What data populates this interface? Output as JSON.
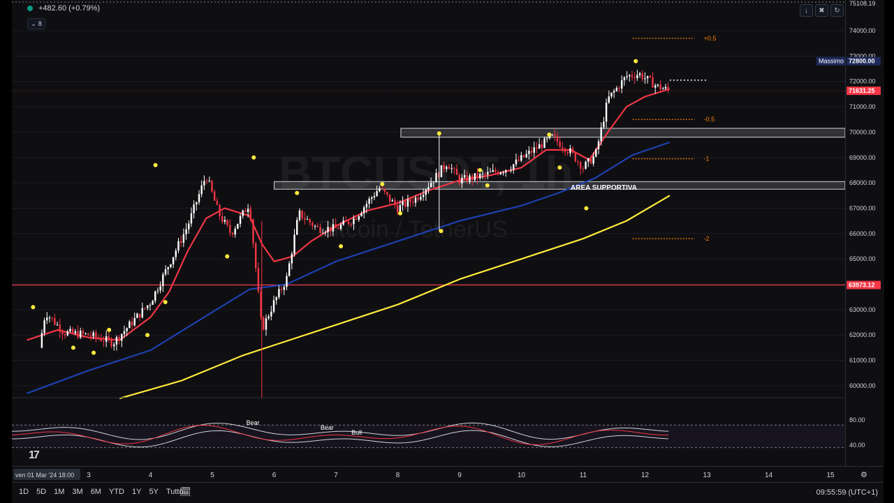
{
  "header": {
    "change": "+482.60 (+0.79%)",
    "indicator_count": "8"
  },
  "watermark": {
    "symbol": "BTCUSDT, 1h",
    "name": "Bitcoin / TetherUS"
  },
  "price_scale": {
    "ticks": [
      "74000.00",
      "73000.00",
      "72000.00",
      "71000.00",
      "70000.00",
      "69000.00",
      "68000.00",
      "67000.00",
      "66000.00",
      "65000.00",
      "64000.00",
      "63000.00",
      "62000.00",
      "61000.00",
      "60000.00"
    ],
    "top_label": "75108.19",
    "high_tag": "Massimo",
    "high_price": "72800.00",
    "current_price": "71631.25",
    "level_price": "63973.12",
    "osc_ticks": [
      "80.00",
      "40.00"
    ]
  },
  "annotations": {
    "support_label": "AREA SUPPORTIVA",
    "fib_labels": [
      "+0.5",
      "-0.5",
      "-1",
      "-2"
    ],
    "osc_labels": [
      "Bear",
      "Bear",
      "Bull"
    ]
  },
  "time_axis": {
    "cursor_label": "ven 01 Mar '24   18:00",
    "labels": [
      "3",
      "4",
      "5",
      "6",
      "7",
      "8",
      "9",
      "10",
      "11",
      "12",
      "13",
      "14",
      "15"
    ]
  },
  "bottom_bar": {
    "timeframes": [
      "1D",
      "5D",
      "1M",
      "3M",
      "6M",
      "YTD",
      "1Y",
      "5Y",
      "Tutto"
    ],
    "clock": "09:55:59 (UTC+1)"
  },
  "colors": {
    "up": "#ffffff",
    "down": "#f23645",
    "ema_fast": "#f23645",
    "ema_mid": "#1e40af",
    "ema_slow": "#ffeb3b",
    "level_line": "#f23645",
    "fib": "#f57c00",
    "pivot": "#ffeb3b"
  },
  "chart_data": {
    "type": "candlestick",
    "symbol": "BTCUSDT",
    "ylim": [
      59500,
      75108.19
    ],
    "xlabels": [
      "3",
      "4",
      "5",
      "6",
      "7",
      "8",
      "9",
      "10",
      "11",
      "12",
      "13",
      "14",
      "15"
    ],
    "horizontal_levels": [
      63973.12
    ],
    "support_zones": [
      [
        67750,
        68050
      ],
      [
        69800,
        70150
      ]
    ],
    "fib_levels": [
      {
        "label": "+0.5",
        "price": 73700
      },
      {
        "label": "-0.5",
        "price": 70500
      },
      {
        "label": "-1",
        "price": 68950
      },
      {
        "label": "-2",
        "price": 65800
      }
    ],
    "close_series": [
      {
        "day": 2.2,
        "price": 61500
      },
      {
        "day": 2.3,
        "price": 62900
      },
      {
        "day": 2.6,
        "price": 62100
      },
      {
        "day": 3.0,
        "price": 62000
      },
      {
        "day": 3.4,
        "price": 61700
      },
      {
        "day": 3.7,
        "price": 62500
      },
      {
        "day": 4.0,
        "price": 63300
      },
      {
        "day": 4.3,
        "price": 64800
      },
      {
        "day": 4.6,
        "price": 66300
      },
      {
        "day": 4.9,
        "price": 68300
      },
      {
        "day": 5.1,
        "price": 66800
      },
      {
        "day": 5.3,
        "price": 66000
      },
      {
        "day": 5.6,
        "price": 67200
      },
      {
        "day": 5.8,
        "price": 62200
      },
      {
        "day": 6.0,
        "price": 63300
      },
      {
        "day": 6.2,
        "price": 64200
      },
      {
        "day": 6.4,
        "price": 66800
      },
      {
        "day": 6.7,
        "price": 66200
      },
      {
        "day": 7.0,
        "price": 66200
      },
      {
        "day": 7.3,
        "price": 66600
      },
      {
        "day": 7.7,
        "price": 67800
      },
      {
        "day": 8.0,
        "price": 67000
      },
      {
        "day": 8.3,
        "price": 67400
      },
      {
        "day": 8.6,
        "price": 68200
      },
      {
        "day": 8.8,
        "price": 68800
      },
      {
        "day": 9.0,
        "price": 68100
      },
      {
        "day": 9.4,
        "price": 68300
      },
      {
        "day": 9.8,
        "price": 68600
      },
      {
        "day": 10.2,
        "price": 69300
      },
      {
        "day": 10.5,
        "price": 69800
      },
      {
        "day": 10.8,
        "price": 69200
      },
      {
        "day": 11.0,
        "price": 68600
      },
      {
        "day": 11.2,
        "price": 69100
      },
      {
        "day": 11.4,
        "price": 71300
      },
      {
        "day": 11.7,
        "price": 72200
      },
      {
        "day": 11.9,
        "price": 72300
      },
      {
        "day": 12.2,
        "price": 71800
      },
      {
        "day": 12.4,
        "price": 71631.25
      }
    ],
    "ema_fast": [
      {
        "day": 2.0,
        "price": 61800
      },
      {
        "day": 2.5,
        "price": 62200
      },
      {
        "day": 3.0,
        "price": 61900
      },
      {
        "day": 3.5,
        "price": 61800
      },
      {
        "day": 4.0,
        "price": 62700
      },
      {
        "day": 4.3,
        "price": 63700
      },
      {
        "day": 4.6,
        "price": 65300
      },
      {
        "day": 4.9,
        "price": 66600
      },
      {
        "day": 5.2,
        "price": 67000
      },
      {
        "day": 5.6,
        "price": 66700
      },
      {
        "day": 5.8,
        "price": 65600
      },
      {
        "day": 6.0,
        "price": 64900
      },
      {
        "day": 6.3,
        "price": 65100
      },
      {
        "day": 6.6,
        "price": 65700
      },
      {
        "day": 7.0,
        "price": 66300
      },
      {
        "day": 7.5,
        "price": 66900
      },
      {
        "day": 8.0,
        "price": 67200
      },
      {
        "day": 8.5,
        "price": 67700
      },
      {
        "day": 9.0,
        "price": 68100
      },
      {
        "day": 9.5,
        "price": 68300
      },
      {
        "day": 10.0,
        "price": 68600
      },
      {
        "day": 10.4,
        "price": 69300
      },
      {
        "day": 10.8,
        "price": 69300
      },
      {
        "day": 11.1,
        "price": 68900
      },
      {
        "day": 11.4,
        "price": 70000
      },
      {
        "day": 11.7,
        "price": 71000
      },
      {
        "day": 12.0,
        "price": 71400
      },
      {
        "day": 12.4,
        "price": 71700
      }
    ],
    "ema_mid": [
      {
        "day": 2.0,
        "price": 59700
      },
      {
        "day": 3.0,
        "price": 60600
      },
      {
        "day": 4.0,
        "price": 61400
      },
      {
        "day": 5.0,
        "price": 62900
      },
      {
        "day": 5.6,
        "price": 63800
      },
      {
        "day": 6.2,
        "price": 64000
      },
      {
        "day": 7.0,
        "price": 64900
      },
      {
        "day": 8.0,
        "price": 65700
      },
      {
        "day": 9.0,
        "price": 66500
      },
      {
        "day": 10.0,
        "price": 67100
      },
      {
        "day": 10.6,
        "price": 67600
      },
      {
        "day": 11.2,
        "price": 68200
      },
      {
        "day": 11.8,
        "price": 69100
      },
      {
        "day": 12.4,
        "price": 69600
      }
    ],
    "ema_slow": [
      {
        "day": 3.5,
        "price": 59500
      },
      {
        "day": 4.5,
        "price": 60200
      },
      {
        "day": 5.5,
        "price": 61200
      },
      {
        "day": 6.0,
        "price": 61600
      },
      {
        "day": 7.0,
        "price": 62400
      },
      {
        "day": 8.0,
        "price": 63200
      },
      {
        "day": 9.0,
        "price": 64200
      },
      {
        "day": 10.0,
        "price": 65000
      },
      {
        "day": 11.0,
        "price": 65800
      },
      {
        "day": 11.7,
        "price": 66500
      },
      {
        "day": 12.4,
        "price": 67500
      }
    ],
    "pivots_high": [
      {
        "day": 2.1,
        "price": 63100
      },
      {
        "day": 4.08,
        "price": 68700
      },
      {
        "day": 5.67,
        "price": 69000
      },
      {
        "day": 6.37,
        "price": 67600
      },
      {
        "day": 7.75,
        "price": 67950
      },
      {
        "day": 8.67,
        "price": 69950
      },
      {
        "day": 9.33,
        "price": 68500
      },
      {
        "day": 10.45,
        "price": 69900
      },
      {
        "day": 11.85,
        "price": 72800
      }
    ],
    "pivots_low": [
      {
        "day": 2.75,
        "price": 61500
      },
      {
        "day": 3.08,
        "price": 61300
      },
      {
        "day": 3.33,
        "price": 62200
      },
      {
        "day": 3.95,
        "price": 62000
      },
      {
        "day": 4.24,
        "price": 63300
      },
      {
        "day": 5.24,
        "price": 65100
      },
      {
        "day": 7.08,
        "price": 65500
      },
      {
        "day": 8.04,
        "price": 66800
      },
      {
        "day": 8.7,
        "price": 66100
      },
      {
        "day": 9.45,
        "price": 67900
      },
      {
        "day": 10.62,
        "price": 68600
      },
      {
        "day": 11.05,
        "price": 67000
      }
    ],
    "oscillator": {
      "ylim": [
        20,
        100
      ],
      "upper_band": 72,
      "lower_band": 36,
      "ticks": [
        80,
        40
      ]
    }
  }
}
